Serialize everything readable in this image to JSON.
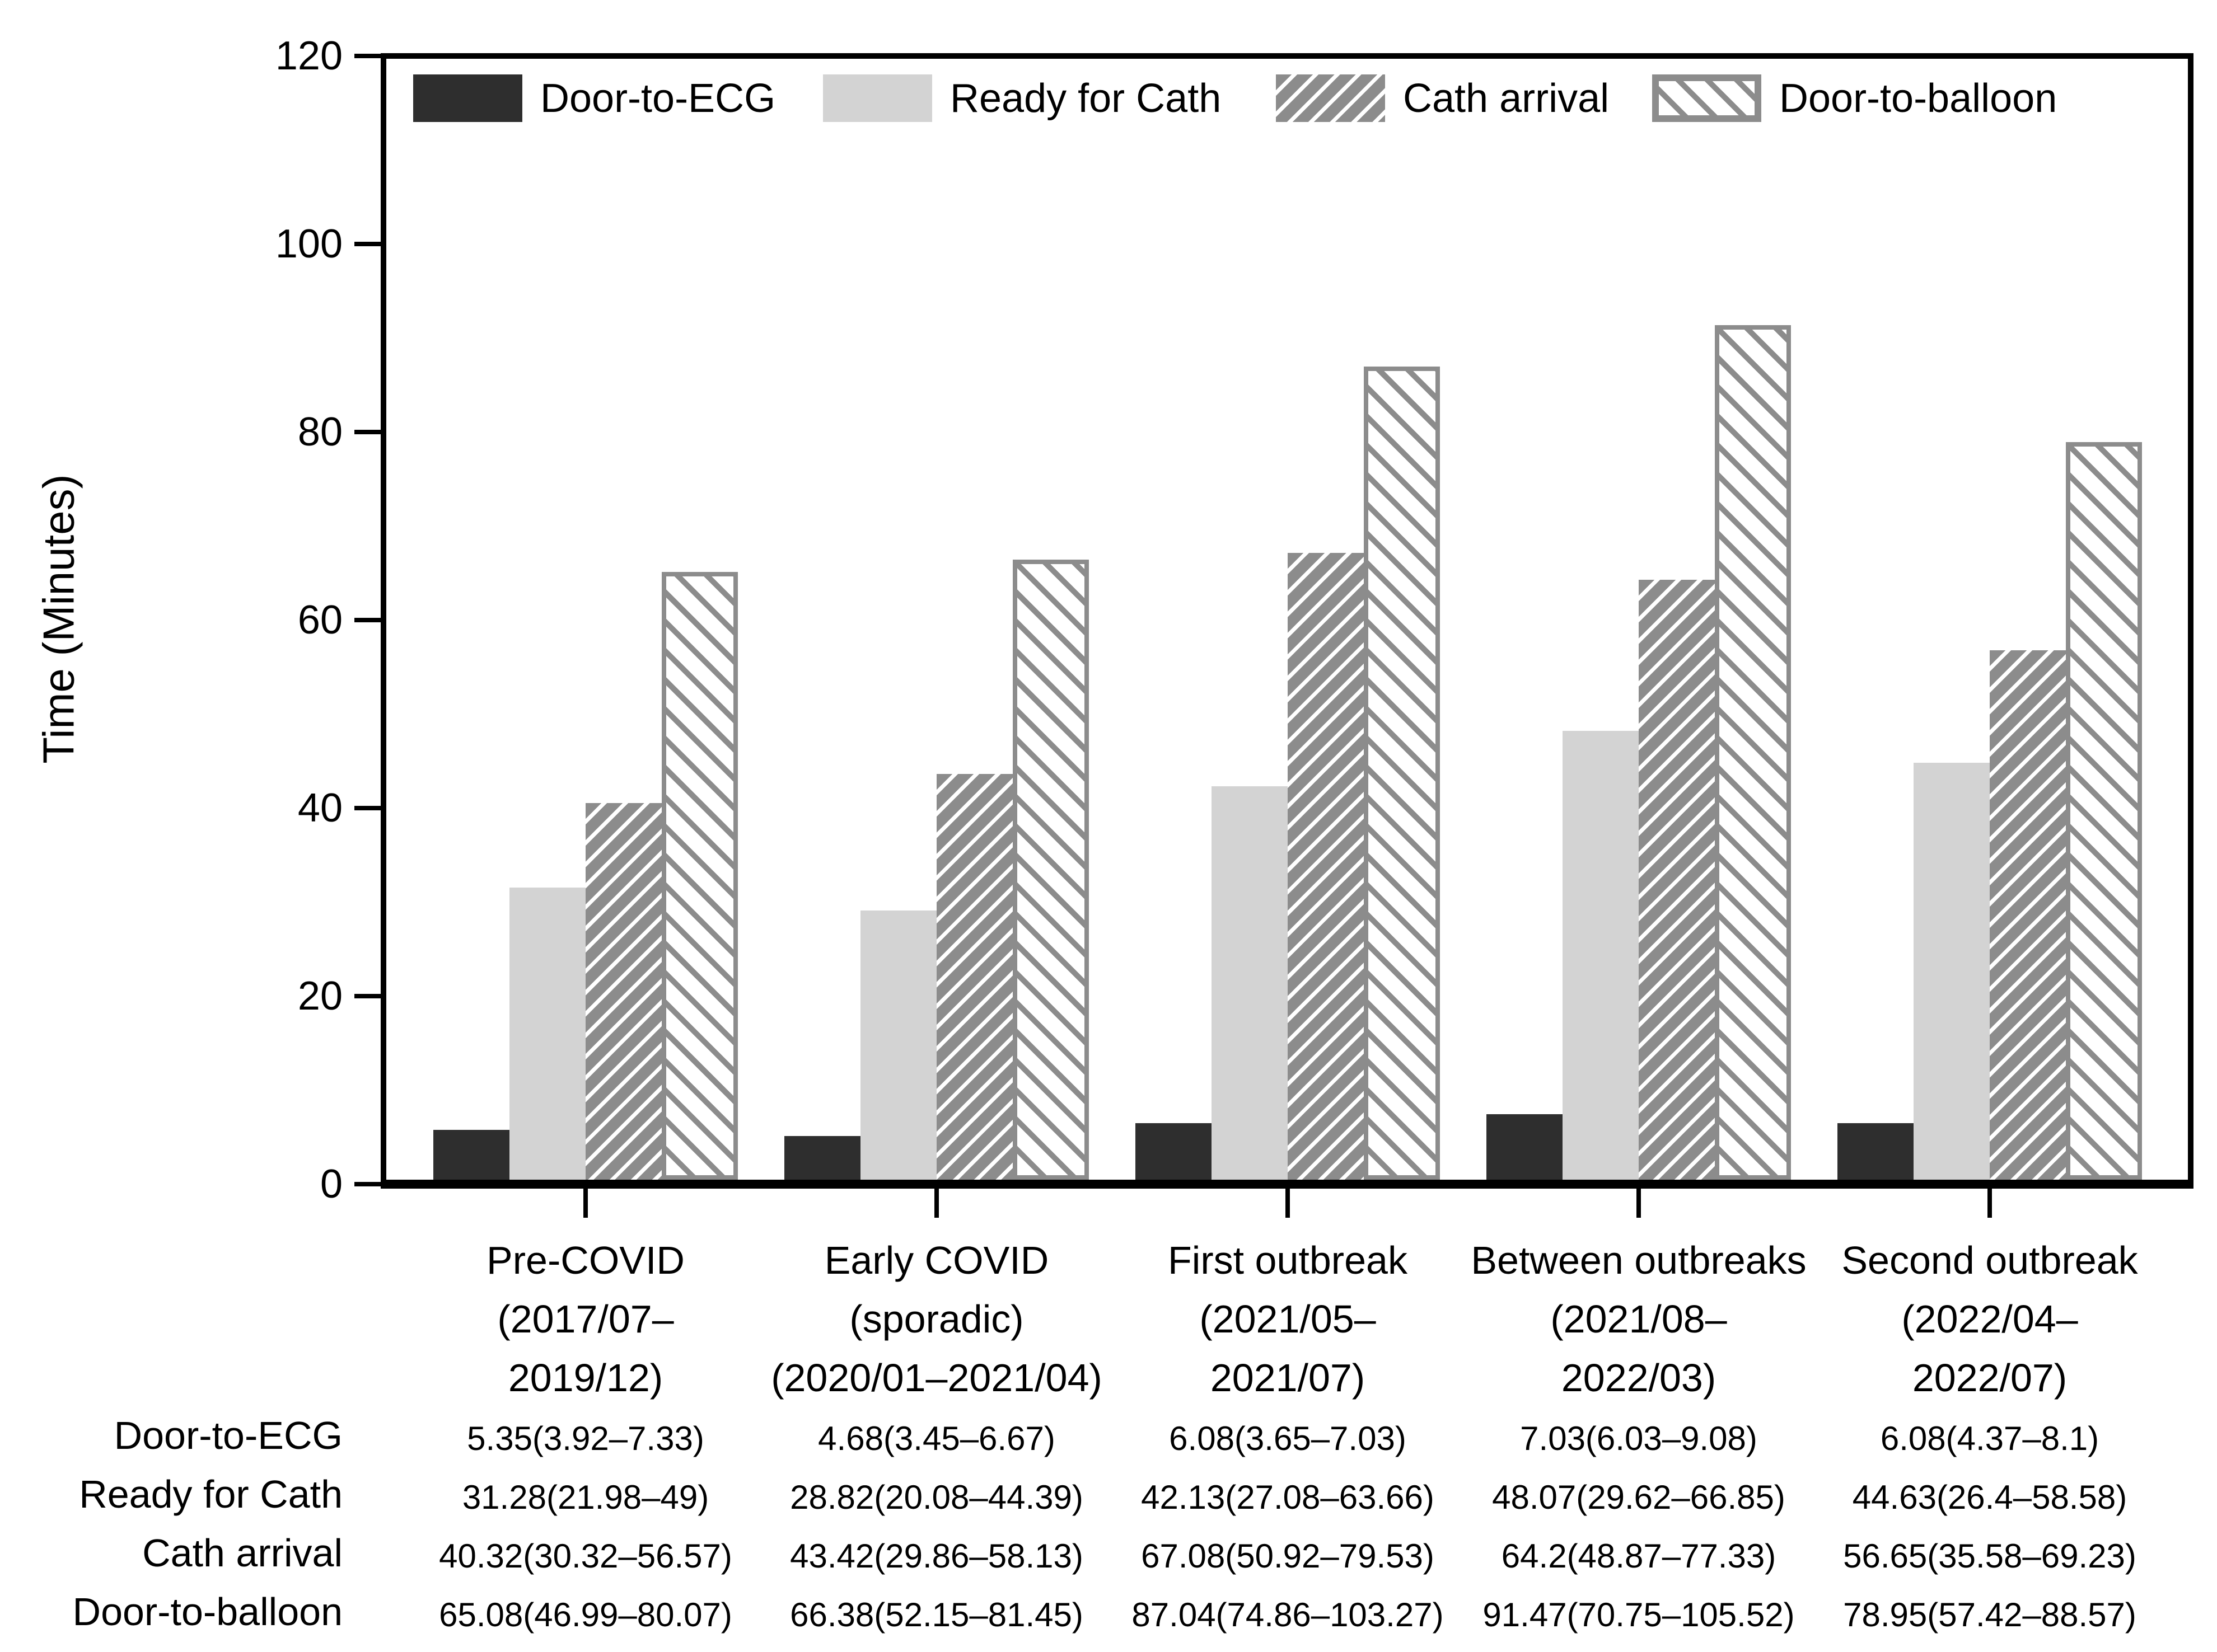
{
  "colors": {
    "series_dark": "#2e2e2e",
    "series_light": "#d3d3d3",
    "hatch_gray": "#8c8c8c",
    "axis_black": "#000000",
    "background": "#ffffff"
  },
  "chart_data": {
    "type": "bar",
    "title": "",
    "xlabel": "",
    "ylabel": "Time (Minutes)",
    "ylim": [
      0,
      120
    ],
    "yticks": [
      0,
      20,
      40,
      60,
      80,
      100,
      120
    ],
    "grid": false,
    "legend_position": "top-inside",
    "categories": [
      {
        "lines": [
          "Pre-COVID",
          "(2017/07–",
          "2019/12)"
        ]
      },
      {
        "lines": [
          "Early COVID",
          "(sporadic)",
          "(2020/01–2021/04)"
        ]
      },
      {
        "lines": [
          "First outbreak",
          "(2021/05–",
          "2021/07)"
        ]
      },
      {
        "lines": [
          "Between outbreaks",
          "(2021/08–",
          "2022/03)"
        ]
      },
      {
        "lines": [
          "Second outbreak",
          "(2022/04–",
          "2022/07)"
        ]
      }
    ],
    "series": [
      {
        "name": "Door-to-ECG",
        "pattern": "solid-dark",
        "values": [
          5.35,
          4.68,
          6.08,
          7.03,
          6.08
        ]
      },
      {
        "name": "Ready for Cath",
        "pattern": "solid-light",
        "values": [
          31.28,
          28.82,
          42.13,
          48.07,
          44.63
        ]
      },
      {
        "name": "Cath arrival",
        "pattern": "hatch-forward",
        "values": [
          40.32,
          43.42,
          67.08,
          64.2,
          56.65
        ]
      },
      {
        "name": "Door-to-balloon",
        "pattern": "hatch-backward",
        "values": [
          65.08,
          66.38,
          87.04,
          91.47,
          78.95
        ]
      }
    ]
  },
  "table": {
    "rows": [
      {
        "label": "Door-to-ECG",
        "values": [
          "5.35(3.92–7.33)",
          "4.68(3.45–6.67)",
          "6.08(3.65–7.03)",
          "7.03(6.03–9.08)",
          "6.08(4.37–8.1)"
        ]
      },
      {
        "label": "Ready for Cath",
        "values": [
          "31.28(21.98–49)",
          "28.82(20.08–44.39)",
          "42.13(27.08–63.66)",
          "48.07(29.62–66.85)",
          "44.63(26.4–58.58)"
        ]
      },
      {
        "label": "Cath arrival",
        "values": [
          "40.32(30.32–56.57)",
          "43.42(29.86–58.13)",
          "67.08(50.92–79.53)",
          "64.2(48.87–77.33)",
          "56.65(35.58–69.23)"
        ]
      },
      {
        "label": "Door-to-balloon",
        "values": [
          "65.08(46.99–80.07)",
          "66.38(52.15–81.45)",
          "87.04(74.86–103.27)",
          "91.47(70.75–105.52)",
          "78.95(57.42–88.57)"
        ]
      }
    ]
  }
}
